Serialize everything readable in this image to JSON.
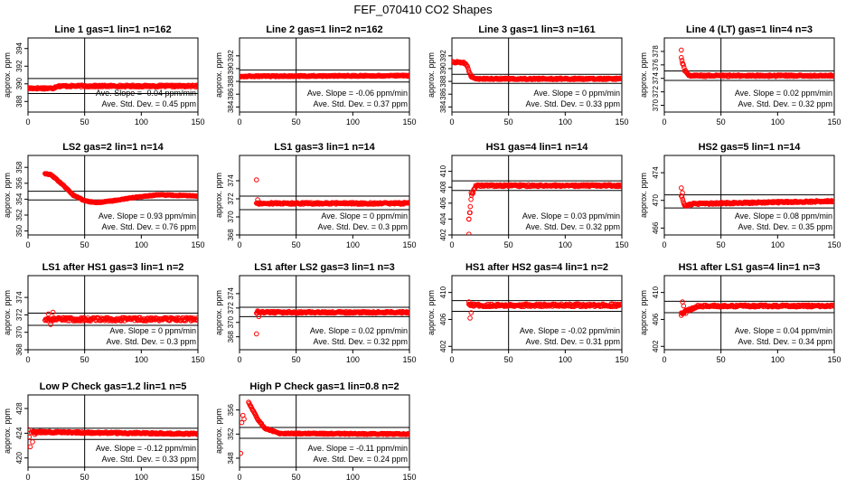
{
  "figure_title": "FEF_070410  CO2 Shapes",
  "marker_color": "#ff0000",
  "line_color": "#000000",
  "stat_labels": {
    "slope_prefix": "Ave. Slope = ",
    "slope_unit": " ppm/min",
    "sd_prefix": "Ave. Std. Dev. = ",
    "sd_unit": " ppm"
  },
  "chart_data": [
    {
      "type": "scatter",
      "title": "Line 1 gas=1 lin=1 n=162",
      "xlabel": "",
      "ylabel": "approx. ppm",
      "xlim": [
        0,
        150
      ],
      "ylim": [
        386.8,
        395.2
      ],
      "xticks": [
        0,
        50,
        100,
        150
      ],
      "yticks": [
        388,
        390,
        392,
        394
      ],
      "vline": 50,
      "hlines": [
        388.9,
        390.6
      ],
      "slope": "-0.04",
      "sd": "0.45",
      "shape": {
        "type": "hold",
        "x0": 0,
        "x1": 150,
        "keys": [
          [
            0,
            389.5
          ],
          [
            22,
            389.5
          ],
          [
            26,
            389.75
          ],
          [
            150,
            389.75
          ]
        ],
        "noise": 0.1,
        "pre_x": [],
        "pre_y": []
      }
    },
    {
      "type": "scatter",
      "title": "Line 2 gas=1 lin=2 n=162",
      "xlabel": "",
      "ylabel": "approx. ppm",
      "xlim": [
        0,
        150
      ],
      "ylim": [
        383.2,
        394.8
      ],
      "xticks": [
        0,
        50,
        100,
        150
      ],
      "yticks": [
        384,
        386,
        388,
        390,
        392
      ],
      "vline": 50,
      "hlines": [
        387.9,
        389.8
      ],
      "slope": "-0.06",
      "sd": "0.37",
      "shape": {
        "type": "hold",
        "x0": 0,
        "x1": 150,
        "keys": [
          [
            0,
            388.8
          ],
          [
            150,
            388.9
          ]
        ],
        "noise": 0.09,
        "pre_x": [],
        "pre_y": []
      }
    },
    {
      "type": "scatter",
      "title": "Line 3 gas=1 lin=3 n=161",
      "xlabel": "",
      "ylabel": "approx. ppm",
      "xlim": [
        0,
        150
      ],
      "ylim": [
        383.2,
        394.8
      ],
      "xticks": [
        0,
        50,
        100,
        150
      ],
      "yticks": [
        384,
        386,
        388,
        390,
        392
      ],
      "vline": 50,
      "hlines": [
        387.7,
        389.1
      ],
      "slope": "0",
      "sd": "0.33",
      "shape": {
        "type": "curve",
        "x0": 0,
        "x1": 150,
        "keys": [
          [
            0,
            391.0
          ],
          [
            10,
            391.0
          ],
          [
            13,
            390.6
          ],
          [
            17,
            388.7
          ],
          [
            20,
            388.4
          ],
          [
            150,
            388.4
          ]
        ],
        "noise": 0.12,
        "pre_x": [],
        "pre_y": []
      }
    },
    {
      "type": "scatter",
      "title": "Line 4 (LT) gas=1 lin=4 n=3",
      "xlabel": "",
      "ylabel": "approx. ppm",
      "xlim": [
        0,
        150
      ],
      "ylim": [
        369.0,
        380.0
      ],
      "xticks": [
        0,
        50,
        100,
        150
      ],
      "yticks": [
        370,
        372,
        374,
        376,
        378
      ],
      "vline": 50,
      "hlines": [
        373.7,
        375.1
      ],
      "slope": "0.02",
      "sd": "0.32",
      "shape": {
        "type": "curve",
        "x0": 15,
        "x1": 150,
        "keys": [
          [
            15,
            377.0
          ],
          [
            18,
            375.2
          ],
          [
            22,
            374.4
          ],
          [
            150,
            374.4
          ]
        ],
        "noise": 0.13,
        "pre_x": [
          15,
          16
        ],
        "pre_y": [
          378.2,
          376.2
        ]
      }
    },
    {
      "type": "scatter",
      "title": "LS2 gas=2 lin=1 n=14",
      "xlabel": "",
      "ylabel": "approx. ppm",
      "xlim": [
        0,
        150
      ],
      "ylim": [
        349.5,
        359.5
      ],
      "xticks": [
        0,
        50,
        100,
        150
      ],
      "yticks": [
        350,
        352,
        354,
        356,
        358
      ],
      "vline": 50,
      "hlines": [
        353.9,
        355.0
      ],
      "slope": "0.93",
      "sd": "0.76",
      "shape": {
        "type": "curve",
        "x0": 15,
        "x1": 150,
        "keys": [
          [
            15,
            357.2
          ],
          [
            20,
            357.1
          ],
          [
            30,
            355.9
          ],
          [
            40,
            354.5
          ],
          [
            50,
            353.8
          ],
          [
            60,
            353.55
          ],
          [
            75,
            353.8
          ],
          [
            95,
            354.25
          ],
          [
            115,
            354.55
          ],
          [
            150,
            354.4
          ]
        ],
        "noise": 0.05,
        "pre_x": [],
        "pre_y": []
      }
    },
    {
      "type": "scatter",
      "title": "LS1 gas=3 lin=1 n=14",
      "xlabel": "",
      "ylabel": "approx. ppm",
      "xlim": [
        0,
        150
      ],
      "ylim": [
        368.0,
        376.8
      ],
      "xticks": [
        0,
        50,
        100,
        150
      ],
      "yticks": [
        368,
        370,
        372,
        374
      ],
      "vline": 50,
      "hlines": [
        370.8,
        372.3
      ],
      "slope": "0",
      "sd": "0.3",
      "shape": {
        "type": "hold",
        "x0": 15,
        "x1": 150,
        "keys": [
          [
            15,
            371.5
          ],
          [
            150,
            371.5
          ]
        ],
        "noise": 0.1,
        "pre_x": [
          15,
          16
        ],
        "pre_y": [
          374.1,
          371.9
        ]
      }
    },
    {
      "type": "scatter",
      "title": "HS1 gas=4 lin=1 n=14",
      "xlabel": "",
      "ylabel": "",
      "xlim": [
        0,
        150
      ],
      "ylim": [
        402.0,
        412.0
      ],
      "xticks": [
        0,
        50,
        100,
        150
      ],
      "yticks": [
        402,
        404,
        406,
        408,
        410
      ],
      "vline": 50,
      "hlines": [
        407.6,
        408.8
      ],
      "slope": "0.03",
      "sd": "0.32",
      "shape": {
        "type": "curve",
        "x0": 15,
        "x1": 150,
        "keys": [
          [
            15,
            404.0
          ],
          [
            17,
            406.8
          ],
          [
            21,
            408.2
          ],
          [
            150,
            408.2
          ]
        ],
        "noise": 0.12,
        "pre_x": [
          15,
          15,
          16,
          17
        ],
        "pre_y": [
          402.1,
          404.0,
          404.8,
          407.3
        ]
      }
    },
    {
      "type": "scatter",
      "title": "HS2 gas=5 lin=1 n=14",
      "xlabel": "",
      "ylabel": "approx. ppm",
      "xlim": [
        0,
        150
      ],
      "ylim": [
        465.0,
        476.5
      ],
      "xticks": [
        0,
        50,
        100,
        150
      ],
      "yticks": [
        466,
        470,
        474
      ],
      "vline": 50,
      "hlines": [
        468.9,
        470.8
      ],
      "slope": "0.08",
      "sd": "0.35",
      "shape": {
        "type": "curve",
        "x0": 15,
        "x1": 150,
        "keys": [
          [
            15,
            470.7
          ],
          [
            18,
            469.2
          ],
          [
            25,
            469.5
          ],
          [
            150,
            469.9
          ]
        ],
        "noise": 0.12,
        "pre_x": [
          15,
          16
        ],
        "pre_y": [
          471.8,
          471.1
        ]
      }
    },
    {
      "type": "scatter",
      "title": "LS1 after HS1 gas=3 lin=1 n=2",
      "xlabel": "",
      "ylabel": "approx. ppm",
      "xlim": [
        0,
        150
      ],
      "ylim": [
        368.0,
        376.5
      ],
      "xticks": [
        0,
        50,
        100,
        150
      ],
      "yticks": [
        368,
        370,
        372,
        374
      ],
      "vline": 50,
      "hlines": [
        370.8,
        372.2
      ],
      "slope": "0",
      "sd": "0.3",
      "shape": {
        "type": "hold",
        "x0": 15,
        "x1": 150,
        "keys": [
          [
            15,
            371.5
          ],
          [
            150,
            371.5
          ]
        ],
        "noise": 0.2,
        "pre_x": [
          18,
          20,
          22
        ],
        "pre_y": [
          372.1,
          370.9,
          372.3
        ]
      }
    },
    {
      "type": "scatter",
      "title": "LS1 after LS2 gas=3 lin=1 n=3",
      "xlabel": "",
      "ylabel": "approx. ppm",
      "xlim": [
        0,
        150
      ],
      "ylim": [
        366.2,
        376.5
      ],
      "xticks": [
        0,
        50,
        100,
        150
      ],
      "yticks": [
        368,
        370,
        372,
        374
      ],
      "vline": 50,
      "hlines": [
        370.8,
        372.1
      ],
      "slope": "0.02",
      "sd": "0.32",
      "shape": {
        "type": "hold",
        "x0": 15,
        "x1": 150,
        "keys": [
          [
            15,
            371.4
          ],
          [
            150,
            371.4
          ]
        ],
        "noise": 0.12,
        "pre_x": [
          15,
          16,
          17
        ],
        "pre_y": [
          368.4,
          371.6,
          370.8
        ]
      }
    },
    {
      "type": "scatter",
      "title": "HS1 after HS2 gas=4 lin=1 n=2",
      "xlabel": "",
      "ylabel": "approx. ppm",
      "xlim": [
        0,
        150
      ],
      "ylim": [
        401.5,
        412.5
      ],
      "xticks": [
        0,
        50,
        100,
        150
      ],
      "yticks": [
        402,
        406,
        410
      ],
      "vline": 50,
      "hlines": [
        407.2,
        408.8
      ],
      "slope": "-0.02",
      "sd": "0.31",
      "shape": {
        "type": "hold",
        "x0": 15,
        "x1": 150,
        "keys": [
          [
            15,
            408.1
          ],
          [
            150,
            408.1
          ]
        ],
        "noise": 0.2,
        "pre_x": [
          15,
          16,
          17
        ],
        "pre_y": [
          408.6,
          406.2,
          407.0
        ]
      }
    },
    {
      "type": "scatter",
      "title": "HS1 after LS1 gas=4 lin=1 n=3",
      "xlabel": "",
      "ylabel": "approx. ppm",
      "xlim": [
        0,
        150
      ],
      "ylim": [
        401.5,
        412.5
      ],
      "xticks": [
        0,
        50,
        100,
        150
      ],
      "yticks": [
        402,
        406,
        410
      ],
      "vline": 50,
      "hlines": [
        407.0,
        408.7
      ],
      "slope": "0.04",
      "sd": "0.34",
      "shape": {
        "type": "curve",
        "x0": 15,
        "x1": 150,
        "keys": [
          [
            15,
            406.9
          ],
          [
            20,
            407.3
          ],
          [
            30,
            408.0
          ],
          [
            150,
            408.0
          ]
        ],
        "noise": 0.15,
        "pre_x": [
          15,
          16,
          17,
          18,
          19
        ],
        "pre_y": [
          406.6,
          408.6,
          408.0,
          407.2,
          406.9
        ]
      }
    },
    {
      "type": "scatter",
      "title": "Low P Check gas=1.2 lin=1 n=5",
      "xlabel": "",
      "ylabel": "approx. ppm",
      "xlim": [
        0,
        150
      ],
      "ylim": [
        418.5,
        430.2
      ],
      "xticks": [
        0,
        50,
        100,
        150
      ],
      "yticks": [
        420,
        424,
        428
      ],
      "vline": 50,
      "hlines": [
        423.0,
        424.8
      ],
      "slope": "-0.12",
      "sd": "0.33",
      "shape": {
        "type": "hold",
        "x0": 4,
        "x1": 150,
        "keys": [
          [
            4,
            424.2
          ],
          [
            150,
            423.9
          ]
        ],
        "noise": 0.14,
        "pre_x": [
          0,
          1,
          2,
          3,
          4,
          5,
          6,
          7
        ],
        "pre_y": [
          424.6,
          423.4,
          421.8,
          424.1,
          422.6,
          424.3,
          423.8,
          424.0
        ]
      }
    },
    {
      "type": "scatter",
      "title": "High P Check gas=1 lin=0.8 n=2",
      "xlabel": "",
      "ylabel": "approx. ppm",
      "xlim": [
        0,
        150
      ],
      "ylim": [
        346.5,
        358.5
      ],
      "xticks": [
        0,
        50,
        100,
        150
      ],
      "yticks": [
        348,
        352,
        356
      ],
      "vline": 50,
      "hlines": [
        351.3,
        353.1
      ],
      "slope": "-0.11",
      "sd": "0.24",
      "shape": {
        "type": "curve",
        "x0": 8,
        "x1": 150,
        "keys": [
          [
            8,
            357.3
          ],
          [
            12,
            355.9
          ],
          [
            16,
            354.5
          ],
          [
            22,
            353.0
          ],
          [
            35,
            352.1
          ],
          [
            150,
            352.0
          ]
        ],
        "noise": 0.1,
        "pre_x": [
          1,
          2,
          3,
          4
        ],
        "pre_y": [
          348.8,
          353.9,
          355.1,
          354.5
        ]
      }
    }
  ]
}
